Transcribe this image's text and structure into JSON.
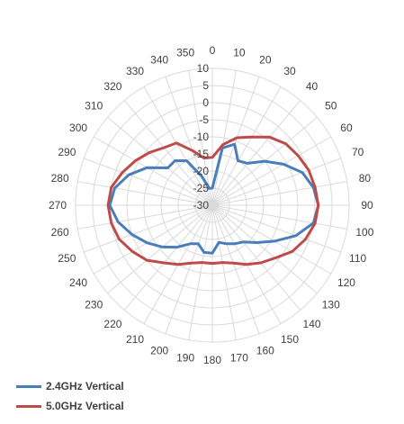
{
  "chart_data": {
    "type": "radar",
    "angles": [
      0,
      10,
      20,
      30,
      40,
      50,
      60,
      70,
      80,
      90,
      100,
      110,
      120,
      130,
      140,
      150,
      160,
      170,
      180,
      190,
      200,
      210,
      220,
      230,
      240,
      250,
      260,
      270,
      280,
      290,
      300,
      310,
      320,
      330,
      340,
      350
    ],
    "radial_ticks": [
      10,
      5,
      0,
      -5,
      -10,
      -15,
      -20,
      -25,
      -30
    ],
    "rlim": [
      -30,
      10
    ],
    "grid": true,
    "legend_position": "bottom-left",
    "series": [
      {
        "name": "2.4GHz Vertical",
        "color": "#4a7ebb",
        "values": [
          -25,
          -13,
          -11,
          -15,
          -14,
          -10,
          -6,
          -2,
          0,
          1,
          0,
          -4,
          -9,
          -13,
          -16,
          -17,
          -18,
          -19,
          -16,
          -16,
          -18,
          -17,
          -14,
          -11,
          -8,
          -5,
          -2,
          0,
          -1,
          -4,
          -8,
          -13,
          -13,
          -15,
          -21,
          -25
        ]
      },
      {
        "name": "5.0GHz Vertical",
        "color": "#be4b48",
        "values": [
          -16,
          -12,
          -9,
          -7,
          -4,
          -2,
          -1,
          0,
          0.5,
          1,
          0.5,
          -1,
          -3,
          -6,
          -8,
          -10,
          -12,
          -13,
          -13,
          -13,
          -12,
          -10,
          -8,
          -5,
          -3,
          -1,
          0,
          0.5,
          0,
          -2,
          -4,
          -6,
          -8,
          -9,
          -13,
          -16
        ]
      }
    ]
  }
}
